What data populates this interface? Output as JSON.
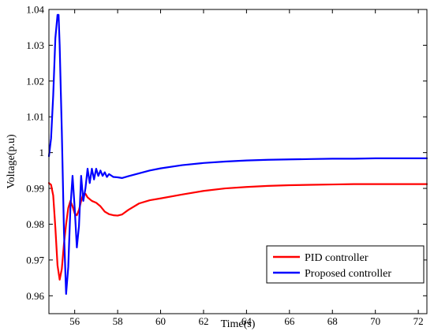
{
  "chart_data": {
    "type": "line",
    "title": "",
    "xlabel": "Time(s)",
    "ylabel": "Voltage(p.u)",
    "xlim": [
      54.8,
      72.4
    ],
    "ylim": [
      0.955,
      1.04
    ],
    "xticks": [
      56,
      58,
      60,
      62,
      64,
      66,
      68,
      70,
      72
    ],
    "yticks": [
      0.96,
      0.97,
      0.98,
      0.99,
      1,
      1.01,
      1.02,
      1.03,
      1.04
    ],
    "xtick_labels": [
      "56",
      "58",
      "60",
      "62",
      "64",
      "66",
      "68",
      "70",
      "72"
    ],
    "ytick_labels": [
      "0.96",
      "0.97",
      "0.98",
      "0.99",
      "1",
      "1.01",
      "1.02",
      "1.03",
      "1.04"
    ],
    "grid": false,
    "legend_position": "bottom-right",
    "series": [
      {
        "name": "PID controller",
        "color": "#ff0000",
        "x": [
          54.8,
          54.9,
          55.0,
          55.1,
          55.2,
          55.3,
          55.4,
          55.5,
          55.6,
          55.7,
          55.8,
          55.9,
          56.0,
          56.1,
          56.2,
          56.3,
          56.4,
          56.5,
          56.6,
          56.8,
          57.0,
          57.2,
          57.4,
          57.6,
          57.8,
          58.0,
          58.2,
          58.5,
          59.0,
          59.5,
          60.0,
          61.0,
          62.0,
          63.0,
          64.0,
          65.0,
          66.0,
          67.0,
          68.0,
          69.0,
          70.0,
          71.0,
          72.0,
          72.4
        ],
        "y": [
          0.9915,
          0.991,
          0.988,
          0.979,
          0.9685,
          0.9645,
          0.9675,
          0.9745,
          0.98,
          0.9845,
          0.9865,
          0.985,
          0.983,
          0.9825,
          0.984,
          0.9865,
          0.9885,
          0.9885,
          0.9875,
          0.9865,
          0.986,
          0.985,
          0.9835,
          0.9828,
          0.9825,
          0.9824,
          0.9827,
          0.984,
          0.9858,
          0.9867,
          0.9872,
          0.9883,
          0.9893,
          0.99,
          0.9904,
          0.9907,
          0.9909,
          0.991,
          0.9911,
          0.9912,
          0.9912,
          0.9912,
          0.9912,
          0.9912
        ]
      },
      {
        "name": "Proposed controller",
        "color": "#0000ff",
        "x": [
          54.8,
          54.9,
          55.0,
          55.1,
          55.2,
          55.25,
          55.3,
          55.4,
          55.5,
          55.6,
          55.7,
          55.8,
          55.9,
          56.0,
          56.1,
          56.2,
          56.3,
          56.4,
          56.5,
          56.6,
          56.7,
          56.8,
          56.9,
          57.0,
          57.1,
          57.2,
          57.3,
          57.4,
          57.5,
          57.6,
          57.8,
          58.0,
          58.2,
          58.5,
          59.0,
          59.5,
          60.0,
          61.0,
          62.0,
          63.0,
          64.0,
          65.0,
          66.0,
          67.0,
          68.0,
          69.0,
          70.0,
          71.0,
          72.0,
          72.4
        ],
        "y": [
          0.999,
          1.004,
          1.016,
          1.032,
          1.0385,
          1.0385,
          1.03,
          1.006,
          0.978,
          0.9605,
          0.968,
          0.9845,
          0.9935,
          0.9845,
          0.9735,
          0.9795,
          0.9935,
          0.9865,
          0.99,
          0.9955,
          0.9915,
          0.9955,
          0.9925,
          0.9955,
          0.9935,
          0.995,
          0.9935,
          0.9945,
          0.9932,
          0.994,
          0.9932,
          0.9931,
          0.9929,
          0.9934,
          0.9942,
          0.995,
          0.9956,
          0.9965,
          0.9971,
          0.9975,
          0.9978,
          0.998,
          0.9981,
          0.9982,
          0.9983,
          0.9983,
          0.9984,
          0.9984,
          0.9984,
          0.9984
        ]
      }
    ]
  }
}
